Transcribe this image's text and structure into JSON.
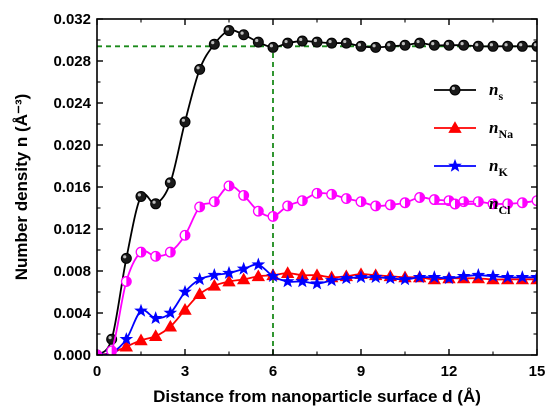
{
  "chart_data": {
    "type": "line",
    "xlabel": "Distance from nanoparticle surface d (Å)",
    "ylabel": "Number density n (Å⁻³)",
    "xlim": [
      0,
      15
    ],
    "ylim": [
      0,
      0.032
    ],
    "xticks": [
      "0",
      "3",
      "6",
      "9",
      "12",
      "15"
    ],
    "yticks": [
      "0.000",
      "0.004",
      "0.008",
      "0.012",
      "0.016",
      "0.020",
      "0.024",
      "0.028",
      "0.032"
    ],
    "grid": false,
    "legend_position": "right",
    "reference_lines": [
      {
        "axis": "y",
        "value": 0.0294,
        "from_x": 0,
        "to_x": 15,
        "color": "#1b8a1b",
        "style": "dashed"
      },
      {
        "axis": "x",
        "value": 6.0,
        "from_y": 0,
        "to_y": 0.0294,
        "color": "#1b8a1b",
        "style": "dashed"
      }
    ],
    "series": [
      {
        "name": "ns",
        "legend_main": "n",
        "legend_sub": "s",
        "color": "#000000",
        "marker": "circle",
        "x": [
          0,
          0.5,
          1.0,
          1.5,
          2.0,
          2.5,
          3.0,
          3.5,
          4.0,
          4.5,
          5.0,
          5.5,
          6.0,
          6.5,
          7.0,
          7.5,
          8.0,
          8.5,
          9.0,
          9.5,
          10.0,
          10.5,
          11.0,
          11.5,
          12.0,
          12.5,
          13.0,
          13.5,
          14.0,
          14.5,
          15.0
        ],
        "y": [
          0.0,
          0.0015,
          0.0092,
          0.0151,
          0.0144,
          0.0164,
          0.0222,
          0.0272,
          0.0296,
          0.0309,
          0.0305,
          0.0298,
          0.0293,
          0.0297,
          0.0299,
          0.0298,
          0.0297,
          0.0297,
          0.0294,
          0.0293,
          0.0294,
          0.0295,
          0.0297,
          0.0295,
          0.0295,
          0.0295,
          0.0294,
          0.0294,
          0.0294,
          0.0294,
          0.0294
        ]
      },
      {
        "name": "nNa",
        "legend_main": "n",
        "legend_sub": "Na",
        "color": "#ff0000",
        "marker": "triangle",
        "x": [
          0,
          0.5,
          1.0,
          1.5,
          2.0,
          2.5,
          3.0,
          3.5,
          4.0,
          4.5,
          5.0,
          5.5,
          6.0,
          6.5,
          7.0,
          7.5,
          8.0,
          8.5,
          9.0,
          9.5,
          10.0,
          10.5,
          11.0,
          11.5,
          12.0,
          12.5,
          13.0,
          13.5,
          14.0,
          14.5,
          15.0
        ],
        "y": [
          0.0,
          0.0002,
          0.0008,
          0.0014,
          0.0018,
          0.0027,
          0.0043,
          0.0058,
          0.0066,
          0.007,
          0.0072,
          0.0075,
          0.0076,
          0.0078,
          0.0076,
          0.0076,
          0.0074,
          0.0075,
          0.0077,
          0.0076,
          0.0075,
          0.0074,
          0.0074,
          0.0072,
          0.0073,
          0.0073,
          0.0073,
          0.0072,
          0.0072,
          0.0072,
          0.0072
        ]
      },
      {
        "name": "nK",
        "legend_main": "n",
        "legend_sub": "K",
        "color": "#0000ff",
        "marker": "star",
        "x": [
          0,
          0.5,
          1.0,
          1.5,
          2.0,
          2.5,
          3.0,
          3.5,
          4.0,
          4.5,
          5.0,
          5.5,
          6.0,
          6.5,
          7.0,
          7.5,
          8.0,
          8.5,
          9.0,
          9.5,
          10.0,
          10.5,
          11.0,
          11.5,
          12.0,
          12.5,
          13.0,
          13.5,
          14.0,
          14.5,
          15.0
        ],
        "y": [
          0.0,
          0.0002,
          0.0015,
          0.0042,
          0.0035,
          0.004,
          0.006,
          0.0072,
          0.0076,
          0.0078,
          0.0082,
          0.0086,
          0.0075,
          0.007,
          0.007,
          0.0068,
          0.0071,
          0.0073,
          0.0074,
          0.0074,
          0.0073,
          0.0072,
          0.0074,
          0.0074,
          0.0073,
          0.0075,
          0.0076,
          0.0075,
          0.0074,
          0.0074,
          0.0074
        ]
      },
      {
        "name": "nCl",
        "legend_main": "n",
        "legend_sub": "Cl",
        "color": "#ff00ff",
        "marker": "half-circle",
        "x": [
          0,
          0.5,
          1.0,
          1.5,
          2.0,
          2.5,
          3.0,
          3.5,
          4.0,
          4.5,
          5.0,
          5.5,
          6.0,
          6.5,
          7.0,
          7.5,
          8.0,
          8.5,
          9.0,
          9.5,
          10.0,
          10.5,
          11.0,
          11.5,
          12.0,
          12.5,
          13.0,
          13.5,
          14.0,
          14.5,
          15.0
        ],
        "y": [
          0.0,
          0.0004,
          0.007,
          0.0098,
          0.0094,
          0.0098,
          0.0114,
          0.0141,
          0.0146,
          0.0161,
          0.0152,
          0.0137,
          0.0132,
          0.0142,
          0.0147,
          0.0154,
          0.0153,
          0.0149,
          0.0146,
          0.0142,
          0.0143,
          0.0145,
          0.015,
          0.0148,
          0.0147,
          0.0146,
          0.0146,
          0.0144,
          0.0144,
          0.0145,
          0.0147
        ]
      }
    ]
  }
}
